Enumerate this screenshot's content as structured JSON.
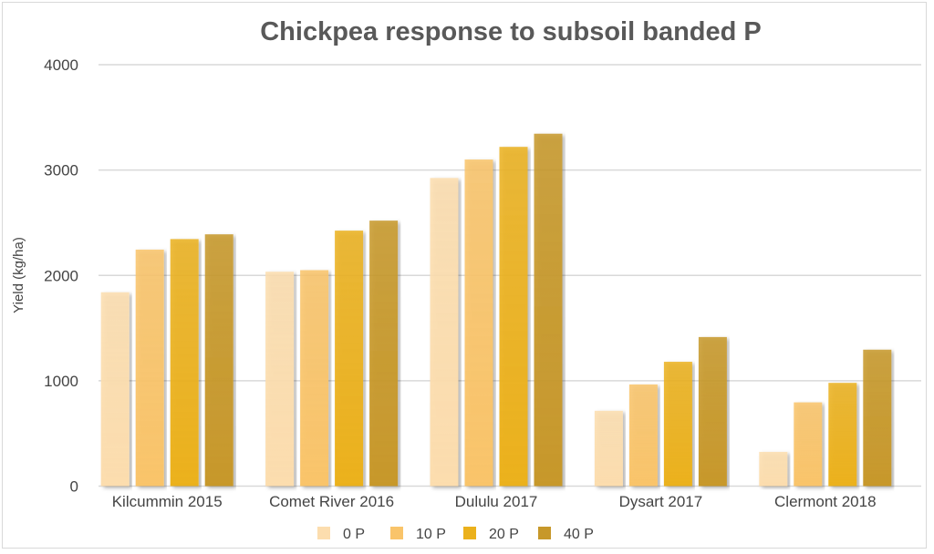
{
  "chart_data": {
    "type": "bar",
    "title": "Chickpea response to subsoil banded P",
    "xlabel": "",
    "ylabel": "Yield (kg/ha)",
    "ylim": [
      0,
      4000
    ],
    "yticks": [
      "0",
      "1000",
      "2000",
      "3000",
      "4000"
    ],
    "grid": true,
    "legend_position": "bottom",
    "categories": [
      "Kilcummin 2015",
      "Comet River 2016",
      "Dululu 2017",
      "Dysart 2017",
      "Clermont 2018"
    ],
    "series": [
      {
        "name": "0 P",
        "color": "#FCDDAE",
        "values": [
          1840,
          2035,
          2925,
          715,
          325
        ]
      },
      {
        "name": "10 P",
        "color": "#F9C46A",
        "values": [
          2245,
          2050,
          3100,
          965,
          795
        ]
      },
      {
        "name": "20 P",
        "color": "#EBB11C",
        "values": [
          2345,
          2425,
          3220,
          1180,
          980
        ]
      },
      {
        "name": "40 P",
        "color": "#C7982A",
        "values": [
          2390,
          2520,
          3345,
          1415,
          1295
        ]
      }
    ]
  }
}
